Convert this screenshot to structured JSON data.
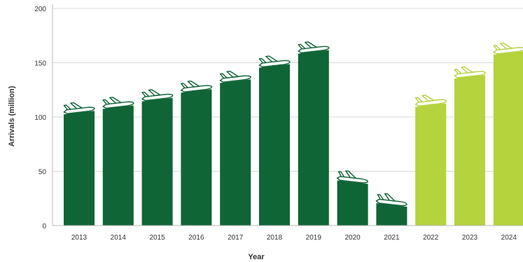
{
  "chart_data": {
    "type": "bar",
    "title": "",
    "xlabel": "Year",
    "ylabel": "Arrivals (million)",
    "ylim": [
      0,
      200
    ],
    "yticks": [
      0,
      50,
      100,
      150,
      200
    ],
    "grid": true,
    "categories": [
      "2013",
      "2014",
      "2015",
      "2016",
      "2017",
      "2018",
      "2019",
      "2020",
      "2021",
      "2022",
      "2023",
      "2024"
    ],
    "values": [
      104,
      109,
      116,
      124,
      133,
      147,
      160,
      40,
      19,
      111,
      137,
      159
    ],
    "bar_colors": [
      "#0f6536",
      "#0f6536",
      "#0f6536",
      "#0f6536",
      "#0f6536",
      "#0f6536",
      "#0f6536",
      "#0f6536",
      "#0f6536",
      "#b5d33d",
      "#b5d33d",
      "#b5d33d"
    ],
    "marker_icon": "airplane-icon"
  }
}
